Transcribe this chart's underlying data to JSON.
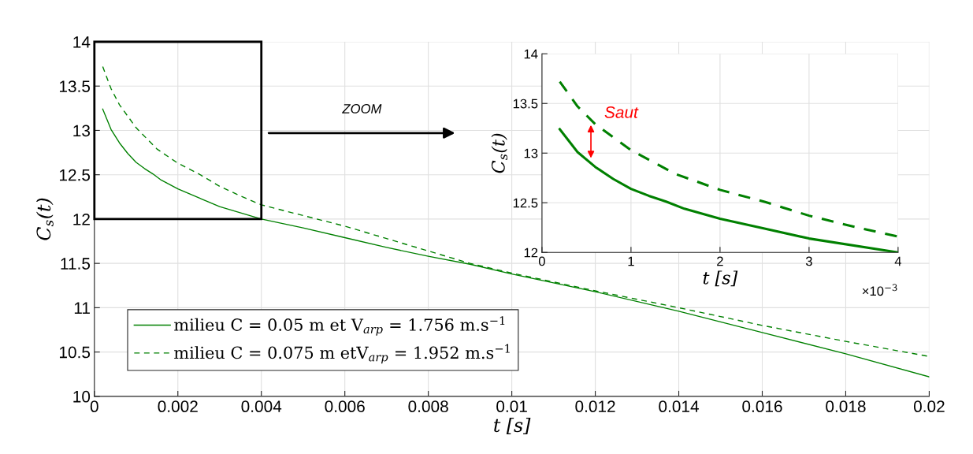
{
  "chart_data": [
    {
      "type": "line",
      "xlabel": "t [s]",
      "ylabel": "C$_{s}$(t)",
      "xlim": [
        0,
        0.02
      ],
      "ylim": [
        10,
        14
      ],
      "xticks": [
        0,
        0.002,
        0.004,
        0.006,
        0.008,
        0.01,
        0.012,
        0.014,
        0.016,
        0.018,
        0.02
      ],
      "yticks": [
        10,
        10.5,
        11,
        11.5,
        12,
        12.5,
        13,
        13.5,
        14
      ],
      "grid": true,
      "legend": "bottom left",
      "marker": "none",
      "series": [
        {
          "name": "milieu C = 0.05 m et V$_{arp}$ = 1.756 m.s$^{−1}$",
          "color": "#008000",
          "line_style": "solid",
          "x": [
            0.0002,
            0.0004,
            0.0006,
            0.0008,
            0.001,
            0.0012,
            0.0014,
            0.0016,
            0.002,
            0.0025,
            0.003,
            0.004,
            0.005,
            0.006,
            0.007,
            0.008,
            0.009,
            0.01,
            0.011,
            0.012,
            0.014,
            0.016,
            0.018,
            0.02
          ],
          "values": [
            13.24,
            13.01,
            12.86,
            12.74,
            12.64,
            12.57,
            12.51,
            12.44,
            12.34,
            12.24,
            12.14,
            12.0,
            11.9,
            11.79,
            11.68,
            11.58,
            11.49,
            11.38,
            11.28,
            11.18,
            10.96,
            10.72,
            10.48,
            10.22
          ]
        },
        {
          "name": "milieu C = 0.075 m etV$_{arp}$ = 1.952 m.s$^{−1}$",
          "color": "#008000",
          "line_style": "dashed",
          "x": [
            0.0002,
            0.0004,
            0.0006,
            0.001,
            0.0015,
            0.002,
            0.0025,
            0.003,
            0.0035,
            0.004,
            0.005,
            0.006,
            0.007,
            0.008,
            0.009,
            0.01,
            0.011,
            0.012,
            0.014,
            0.016,
            0.018,
            0.02
          ],
          "values": [
            13.72,
            13.47,
            13.29,
            13.03,
            12.79,
            12.63,
            12.51,
            12.37,
            12.26,
            12.16,
            12.04,
            11.92,
            11.78,
            11.64,
            11.5,
            11.39,
            11.29,
            11.19,
            11.0,
            10.8,
            10.62,
            10.45
          ]
        }
      ],
      "annotations": [
        "ZOOM"
      ]
    },
    {
      "type": "line",
      "xlabel": "t [s]",
      "ylabel": "C$_{s}$(t)",
      "xlim": [
        0,
        4
      ],
      "ylim": [
        12,
        14
      ],
      "xticks": [
        0,
        1,
        2,
        3,
        4
      ],
      "yticks": [
        12,
        12.5,
        13,
        13.5,
        14
      ],
      "grid": true,
      "marker": "none",
      "series": [
        {
          "color": "#008000",
          "line_style": "solid",
          "x": [
            0.2,
            0.4,
            0.6,
            0.8,
            1.0,
            1.2,
            1.4,
            1.6,
            2.0,
            2.5,
            3.0,
            4.0
          ],
          "values": [
            13.24,
            13.01,
            12.86,
            12.74,
            12.64,
            12.57,
            12.51,
            12.44,
            12.34,
            12.24,
            12.14,
            12.0
          ]
        },
        {
          "color": "#008000",
          "line_style": "dashed",
          "x": [
            0.2,
            0.4,
            0.6,
            1.0,
            1.5,
            2.0,
            2.5,
            3.0,
            3.5,
            4.0
          ],
          "values": [
            13.72,
            13.47,
            13.29,
            13.03,
            12.79,
            12.63,
            12.51,
            12.37,
            12.26,
            12.16
          ]
        }
      ],
      "annotations": [
        {
          "text": "Saut",
          "x": 0.55,
          "y": 13.27
        },
        "×10$^{−3}$"
      ]
    }
  ]
}
